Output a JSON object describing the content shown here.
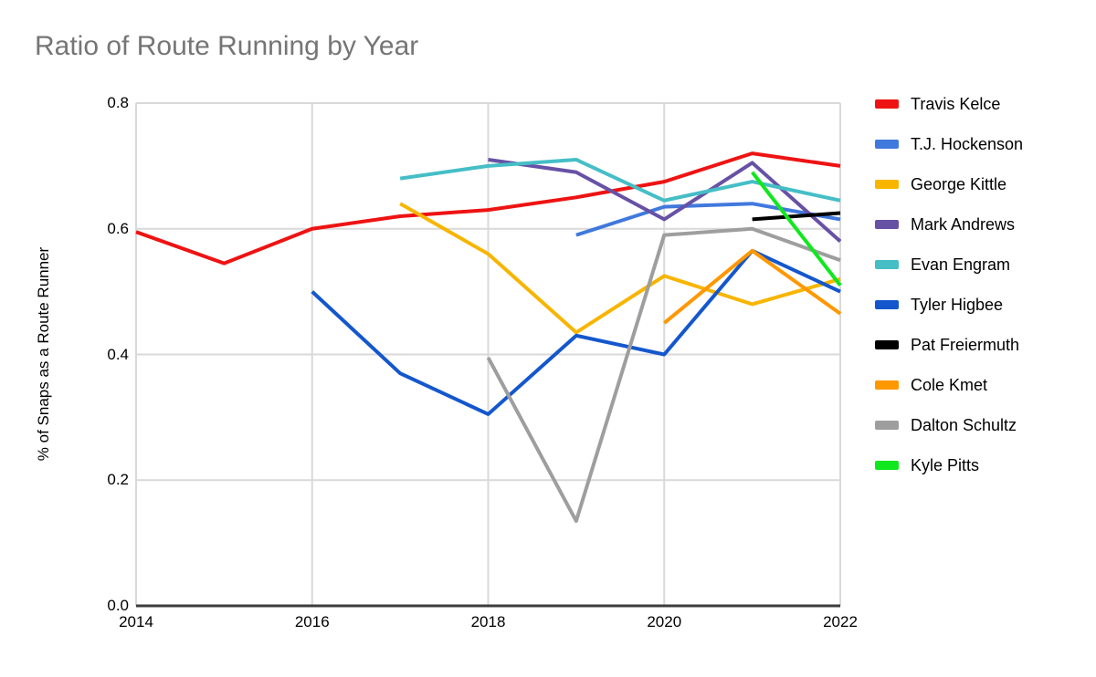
{
  "colors": {
    "background": "#ffffff",
    "title_text": "#757575",
    "gridline": "#d9d9d9",
    "axis_line": "#3c3c3c",
    "tick_text": "#000000"
  },
  "chart_data": {
    "type": "line",
    "title": "Ratio of Route Running by Year",
    "xlabel": "",
    "ylabel": "% of Snaps as a Route Runner",
    "x_range": [
      2014,
      2022
    ],
    "y_range": [
      0,
      0.8
    ],
    "x_ticks": [
      2014,
      2016,
      2018,
      2020,
      2022
    ],
    "y_ticks": [
      0,
      0.2,
      0.4,
      0.6,
      0.8
    ],
    "y_tick_labels": [
      "0.0",
      "0.2",
      "0.4",
      "0.6",
      "0.8"
    ],
    "grid": true,
    "legend_position": "right",
    "line_width": 4,
    "series": [
      {
        "name": "Travis Kelce",
        "color": "#ee1313",
        "x": [
          2014,
          2015,
          2016,
          2017,
          2018,
          2019,
          2020,
          2021,
          2022
        ],
        "values": [
          0.595,
          0.545,
          0.6,
          0.62,
          0.63,
          0.65,
          0.675,
          0.72,
          0.7
        ]
      },
      {
        "name": "T.J. Hockenson",
        "color": "#4079dd",
        "x": [
          2019,
          2020,
          2021,
          2022
        ],
        "values": [
          0.59,
          0.635,
          0.64,
          0.615
        ]
      },
      {
        "name": "George Kittle",
        "color": "#f7b500",
        "x": [
          2017,
          2018,
          2019,
          2020,
          2021,
          2022
        ],
        "values": [
          0.64,
          0.56,
          0.435,
          0.525,
          0.48,
          0.52
        ]
      },
      {
        "name": "Mark Andrews",
        "color": "#6751a5",
        "x": [
          2018,
          2019,
          2020,
          2021,
          2022
        ],
        "values": [
          0.71,
          0.69,
          0.615,
          0.705,
          0.58
        ]
      },
      {
        "name": "Evan Engram",
        "color": "#45bec6",
        "x": [
          2017,
          2018,
          2019,
          2020,
          2021,
          2022
        ],
        "values": [
          0.68,
          0.7,
          0.71,
          0.645,
          0.675,
          0.645
        ]
      },
      {
        "name": "Tyler Higbee",
        "color": "#1457cd",
        "x": [
          2016,
          2017,
          2018,
          2019,
          2020,
          2021,
          2022
        ],
        "values": [
          0.5,
          0.37,
          0.305,
          0.43,
          0.4,
          0.565,
          0.5
        ]
      },
      {
        "name": "Pat Freiermuth",
        "color": "#000000",
        "x": [
          2021,
          2022
        ],
        "values": [
          0.615,
          0.625
        ]
      },
      {
        "name": "Cole Kmet",
        "color": "#ff9800",
        "x": [
          2020,
          2021,
          2022
        ],
        "values": [
          0.45,
          0.565,
          0.465
        ]
      },
      {
        "name": "Dalton Schultz",
        "color": "#9e9e9e",
        "x": [
          2018,
          2019,
          2020,
          2021,
          2022
        ],
        "values": [
          0.395,
          0.135,
          0.59,
          0.6,
          0.55
        ]
      },
      {
        "name": "Kyle Pitts",
        "color": "#0fe81e",
        "x": [
          2021,
          2022
        ],
        "values": [
          0.69,
          0.51
        ]
      }
    ]
  }
}
